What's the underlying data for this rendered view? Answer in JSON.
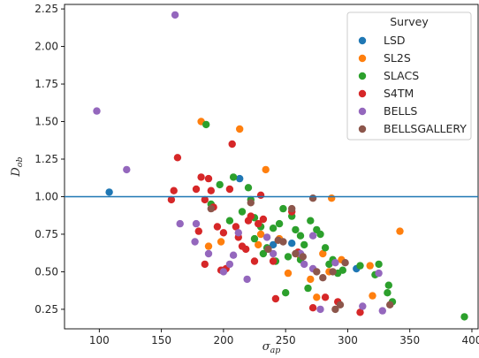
{
  "chart_data": {
    "type": "scatter",
    "xlabel": "σ_ap",
    "ylabel": "D_ob",
    "xlim": [
      72,
      405
    ],
    "ylim": [
      0.12,
      2.28
    ],
    "xticks": [
      100,
      150,
      200,
      250,
      300,
      350,
      400
    ],
    "yticks": [
      0.25,
      0.5,
      0.75,
      1.0,
      1.25,
      1.5,
      1.75,
      2.0,
      2.25
    ],
    "ytick_labels": [
      "0.25",
      "0.50",
      "0.75",
      "1.00",
      "1.25",
      "1.50",
      "1.75",
      "2.00",
      "2.25"
    ],
    "grid": false,
    "reference_line": {
      "y": 1.0,
      "color": "#1f77b4"
    },
    "legend": {
      "title": "Survey",
      "placement": "top-right"
    },
    "series": [
      {
        "name": "LSD",
        "color": "#1f77b4",
        "points": [
          [
            108,
            1.03
          ],
          [
            213,
            1.12
          ],
          [
            240,
            0.68
          ],
          [
            255,
            0.69
          ],
          [
            307,
            0.52
          ]
        ]
      },
      {
        "name": "SL2S",
        "color": "#ff7f0e",
        "points": [
          [
            182,
            1.5
          ],
          [
            213,
            1.45
          ],
          [
            234,
            1.18
          ],
          [
            287,
            0.99
          ],
          [
            342,
            0.77
          ],
          [
            318,
            0.54
          ],
          [
            320,
            0.34
          ],
          [
            198,
            0.7
          ],
          [
            188,
            0.67
          ],
          [
            230,
            0.75
          ],
          [
            245,
            0.72
          ],
          [
            252,
            0.49
          ],
          [
            262,
            0.6
          ],
          [
            275,
            0.33
          ],
          [
            280,
            0.62
          ],
          [
            285,
            0.5
          ],
          [
            295,
            0.58
          ],
          [
            270,
            0.45
          ],
          [
            228,
            0.68
          ]
        ]
      },
      {
        "name": "SLACS",
        "color": "#2ca02c",
        "points": [
          [
            186,
            1.48
          ],
          [
            208,
            1.13
          ],
          [
            220,
            1.06
          ],
          [
            197,
            1.08
          ],
          [
            190,
            0.95
          ],
          [
            205,
            0.84
          ],
          [
            215,
            0.9
          ],
          [
            222,
            0.98
          ],
          [
            225,
            0.86
          ],
          [
            230,
            0.8
          ],
          [
            235,
            0.66
          ],
          [
            240,
            0.79
          ],
          [
            245,
            0.82
          ],
          [
            248,
            0.92
          ],
          [
            255,
            0.87
          ],
          [
            258,
            0.78
          ],
          [
            262,
            0.74
          ],
          [
            265,
            0.68
          ],
          [
            270,
            0.84
          ],
          [
            275,
            0.78
          ],
          [
            278,
            0.75
          ],
          [
            282,
            0.66
          ],
          [
            285,
            0.55
          ],
          [
            288,
            0.58
          ],
          [
            292,
            0.49
          ],
          [
            296,
            0.51
          ],
          [
            310,
            0.54
          ],
          [
            322,
            0.48
          ],
          [
            325,
            0.55
          ],
          [
            332,
            0.36
          ],
          [
            333,
            0.41
          ],
          [
            336,
            0.3
          ],
          [
            394,
            0.2
          ],
          [
            250,
            0.36
          ],
          [
            268,
            0.39
          ],
          [
            225,
            0.72
          ],
          [
            232,
            0.62
          ],
          [
            242,
            0.57
          ],
          [
            252,
            0.6
          ],
          [
            262,
            0.58
          ]
        ]
      },
      {
        "name": "S4TM",
        "color": "#d62728",
        "points": [
          [
            158,
            0.98
          ],
          [
            160,
            1.04
          ],
          [
            163,
            1.26
          ],
          [
            178,
            1.05
          ],
          [
            182,
            1.13
          ],
          [
            188,
            1.12
          ],
          [
            185,
            0.98
          ],
          [
            190,
            1.04
          ],
          [
            192,
            0.93
          ],
          [
            195,
            0.8
          ],
          [
            198,
            0.51
          ],
          [
            200,
            0.76
          ],
          [
            202,
            0.52
          ],
          [
            205,
            1.05
          ],
          [
            207,
            1.35
          ],
          [
            210,
            0.8
          ],
          [
            212,
            0.73
          ],
          [
            215,
            0.67
          ],
          [
            218,
            0.65
          ],
          [
            220,
            0.84
          ],
          [
            222,
            0.87
          ],
          [
            225,
            0.57
          ],
          [
            228,
            0.82
          ],
          [
            230,
            1.01
          ],
          [
            232,
            0.85
          ],
          [
            240,
            0.57
          ],
          [
            242,
            0.32
          ],
          [
            255,
            0.9
          ],
          [
            260,
            0.63
          ],
          [
            272,
            0.26
          ],
          [
            282,
            0.33
          ],
          [
            292,
            0.3
          ],
          [
            310,
            0.23
          ],
          [
            185,
            0.55
          ],
          [
            180,
            0.77
          ]
        ]
      },
      {
        "name": "BELLS",
        "color": "#9467bd",
        "points": [
          [
            98,
            1.57
          ],
          [
            122,
            1.18
          ],
          [
            161,
            2.21
          ],
          [
            165,
            0.82
          ],
          [
            177,
            0.7
          ],
          [
            178,
            0.82
          ],
          [
            188,
            0.62
          ],
          [
            200,
            0.5
          ],
          [
            205,
            0.55
          ],
          [
            208,
            0.61
          ],
          [
            212,
            0.76
          ],
          [
            219,
            0.45
          ],
          [
            235,
            0.73
          ],
          [
            240,
            0.62
          ],
          [
            262,
            0.62
          ],
          [
            265,
            0.55
          ],
          [
            272,
            0.52
          ],
          [
            278,
            0.25
          ],
          [
            290,
            0.56
          ],
          [
            312,
            0.27
          ],
          [
            325,
            0.49
          ],
          [
            328,
            0.24
          ],
          [
            272,
            0.74
          ]
        ]
      },
      {
        "name": "BELLSGALLERY",
        "color": "#8c564b",
        "points": [
          [
            190,
            0.92
          ],
          [
            222,
            0.96
          ],
          [
            236,
            0.65
          ],
          [
            244,
            0.71
          ],
          [
            248,
            0.7
          ],
          [
            255,
            0.92
          ],
          [
            258,
            0.62
          ],
          [
            264,
            0.6
          ],
          [
            272,
            0.99
          ],
          [
            275,
            0.5
          ],
          [
            280,
            0.46
          ],
          [
            288,
            0.5
          ],
          [
            290,
            0.25
          ],
          [
            294,
            0.28
          ],
          [
            298,
            0.56
          ],
          [
            334,
            0.28
          ]
        ]
      }
    ]
  }
}
